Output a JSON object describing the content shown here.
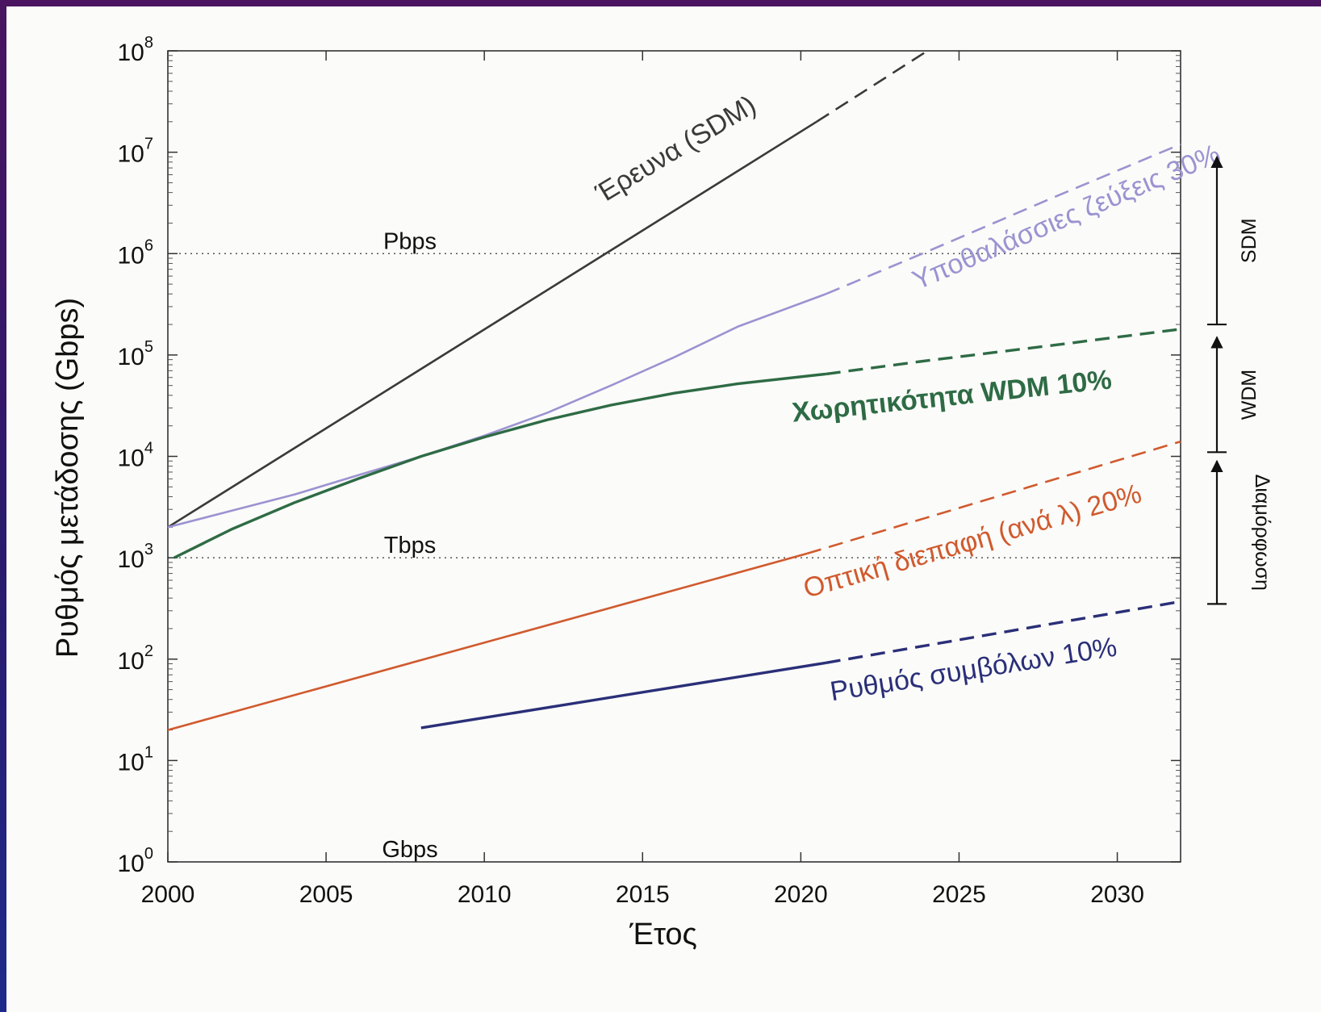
{
  "chart_data": {
    "type": "line",
    "title": "",
    "xlabel": "Έτος",
    "ylabel": "Ρυθμός μετάδοσης (Gbps)",
    "xlim": [
      2000,
      2032
    ],
    "ylim": [
      1,
      100000000
    ],
    "yscale": "log",
    "x_ticks": [
      2000,
      2005,
      2010,
      2015,
      2020,
      2025,
      2030
    ],
    "y_ticks": [
      {
        "value": 1,
        "base": "10",
        "exp": "0"
      },
      {
        "value": 10,
        "base": "10",
        "exp": "1"
      },
      {
        "value": 100,
        "base": "10",
        "exp": "2"
      },
      {
        "value": 1000,
        "base": "10",
        "exp": "3"
      },
      {
        "value": 10000,
        "base": "10",
        "exp": "4"
      },
      {
        "value": 100000,
        "base": "10",
        "exp": "5"
      },
      {
        "value": 1000000,
        "base": "10",
        "exp": "6"
      },
      {
        "value": 10000000,
        "base": "10",
        "exp": "7"
      },
      {
        "value": 100000000,
        "base": "10",
        "exp": "8"
      }
    ],
    "grid": false,
    "reference_lines": [
      {
        "name": "Pbps",
        "value": 1000000
      },
      {
        "name": "Tbps",
        "value": 1000
      },
      {
        "name": "Gbps",
        "value": 1
      }
    ],
    "series": [
      {
        "name": "Έρευνα (SDM)",
        "color": "#3a3a3a",
        "measured": {
          "x": [
            2000,
            2020.5
          ],
          "y": [
            2000,
            20000000
          ]
        },
        "projected": {
          "x": [
            2020.5,
            2024
          ],
          "y": [
            20000000,
            100000000
          ]
        }
      },
      {
        "name": "Υποθαλάσσιες ζεύξεις 30%",
        "color": "#9b93d1",
        "measured": {
          "x": [
            2000,
            2002,
            2004,
            2006,
            2008,
            2010,
            2012,
            2014,
            2016,
            2018,
            2020.8
          ],
          "y": [
            2000,
            2900,
            4200,
            6500,
            10000,
            16000,
            27000,
            50000,
            95000,
            190000,
            400000
          ]
        },
        "projected": {
          "x": [
            2020.8,
            2024,
            2028,
            2032
          ],
          "y": [
            400000,
            1050000,
            3600000,
            12000000
          ]
        }
      },
      {
        "name": "Χωρητικότητα WDM 10%",
        "color": "#2e6b45",
        "measured": {
          "x": [
            2000.2,
            2002,
            2004,
            2006,
            2008,
            2010,
            2012,
            2014,
            2016,
            2018,
            2020.8
          ],
          "y": [
            1000,
            1900,
            3500,
            6000,
            10000,
            15500,
            23000,
            32000,
            42000,
            52000,
            65000
          ]
        },
        "projected": {
          "x": [
            2020.8,
            2024,
            2028,
            2032
          ],
          "y": [
            65000,
            88000,
            125000,
            180000
          ]
        }
      },
      {
        "name": "Οπτική διεπαφή (ανά λ) 20%",
        "color": "#d05a2e",
        "measured": {
          "x": [
            2000,
            2020.2
          ],
          "y": [
            20,
            1100
          ]
        },
        "projected": {
          "x": [
            2020.2,
            2032
          ],
          "y": [
            1100,
            14000
          ]
        }
      },
      {
        "name": "Ρυθμός συμβόλων 10%",
        "color": "#2a2f78",
        "measured": {
          "x": [
            2008,
            2020.8
          ],
          "y": [
            21,
            92
          ]
        },
        "projected": {
          "x": [
            2020.8,
            2032
          ],
          "y": [
            92,
            370
          ]
        }
      }
    ],
    "brackets": [
      {
        "name": "SDM",
        "from": 200000,
        "to": 9000000
      },
      {
        "name": "WDM",
        "from": 11000,
        "to": 150000
      },
      {
        "name": "Διαμόρφωση",
        "from": 350,
        "to": 9000
      }
    ]
  }
}
